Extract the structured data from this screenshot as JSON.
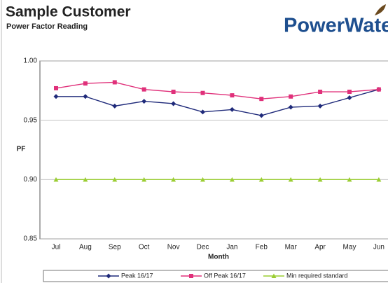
{
  "chart_data": {
    "type": "line",
    "title": "Sample Customer",
    "subtitle": "Power Factor Reading",
    "logo": "PowerWater",
    "x_label": "Month",
    "y_label": "PF",
    "categories": [
      "Jul",
      "Aug",
      "Sep",
      "Oct",
      "Nov",
      "Dec",
      "Jan",
      "Feb",
      "Mar",
      "Apr",
      "May",
      "Jun"
    ],
    "series": [
      {
        "name": "Peak 16/17",
        "color": "#1f2a7a",
        "marker": "diamond",
        "values": [
          0.97,
          0.97,
          0.962,
          0.966,
          0.964,
          0.957,
          0.959,
          0.954,
          0.961,
          0.962,
          0.969,
          0.976
        ]
      },
      {
        "name": "Off Peak 16/17",
        "color": "#e0307a",
        "marker": "square",
        "values": [
          0.977,
          0.981,
          0.982,
          0.976,
          0.974,
          0.973,
          0.971,
          0.968,
          0.97,
          0.974,
          0.974,
          0.976
        ]
      },
      {
        "name": "Min required standard",
        "color": "#9acd32",
        "marker": "triangle",
        "values": [
          0.9,
          0.9,
          0.9,
          0.9,
          0.9,
          0.9,
          0.9,
          0.9,
          0.9,
          0.9,
          0.9,
          0.9
        ]
      }
    ],
    "ylim": [
      0.85,
      1.0
    ],
    "yticks": [
      {
        "value": 0.85,
        "label": "0.85"
      },
      {
        "value": 0.9,
        "label": "0.90"
      },
      {
        "value": 0.95,
        "label": "0.95"
      },
      {
        "value": 1.0,
        "label": "1.00"
      }
    ],
    "grid": true,
    "legend": "bottom"
  }
}
